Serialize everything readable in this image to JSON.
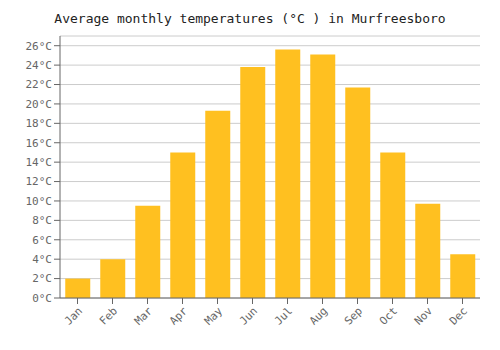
{
  "chart_data": {
    "type": "bar",
    "title": "Average monthly temperatures (°C ) in Murfreesboro",
    "categories": [
      "Jan",
      "Feb",
      "Mar",
      "Apr",
      "May",
      "Jun",
      "Jul",
      "Aug",
      "Sep",
      "Oct",
      "Nov",
      "Dec"
    ],
    "values": [
      2.0,
      4.0,
      9.5,
      15.0,
      19.3,
      23.8,
      25.6,
      25.1,
      21.7,
      15.0,
      9.7,
      4.5
    ],
    "color": "#FFC020",
    "ylim": [
      0,
      27
    ],
    "yticks": [
      {
        "value": 0,
        "label": "0°C"
      },
      {
        "value": 2,
        "label": "2°C"
      },
      {
        "value": 4,
        "label": "4°C"
      },
      {
        "value": 6,
        "label": "6°C"
      },
      {
        "value": 8,
        "label": "8°C"
      },
      {
        "value": 10,
        "label": "10°C"
      },
      {
        "value": 12,
        "label": "12°C"
      },
      {
        "value": 14,
        "label": "14°C"
      },
      {
        "value": 16,
        "label": "16°C"
      },
      {
        "value": 18,
        "label": "18°C"
      },
      {
        "value": 20,
        "label": "20°C"
      },
      {
        "value": 22,
        "label": "22°C"
      },
      {
        "value": 24,
        "label": "24°C"
      },
      {
        "value": 26,
        "label": "26°C"
      }
    ],
    "grid": true
  }
}
